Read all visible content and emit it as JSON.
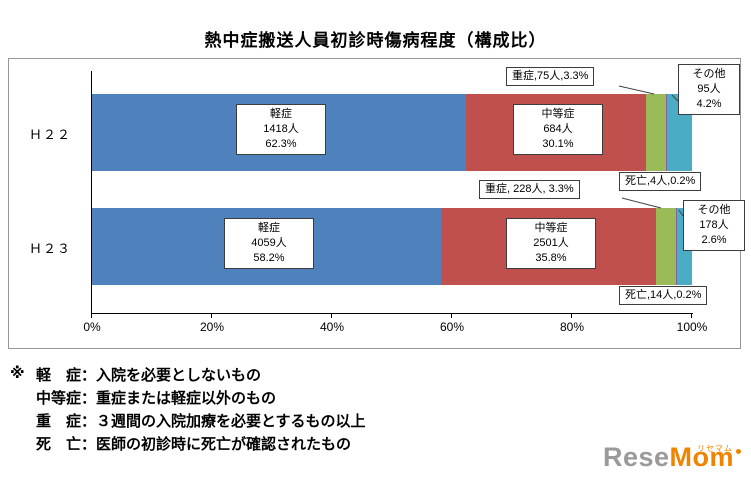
{
  "title": "熱中症搬送人員初診時傷病程度（構成比）",
  "chart_data": {
    "type": "bar",
    "orientation": "horizontal",
    "stacked": true,
    "title": "熱中症搬送人員初診時傷病程度（構成比）",
    "categories": [
      "Ｈ２２",
      "Ｈ２３"
    ],
    "series": [
      {
        "name": "軽症",
        "color": "#4F81BD",
        "percents": [
          62.3,
          58.2
        ],
        "counts": [
          1418,
          4059
        ]
      },
      {
        "name": "中等症",
        "color": "#C0504D",
        "percents": [
          30.1,
          35.8
        ],
        "counts": [
          684,
          2501
        ]
      },
      {
        "name": "重症",
        "color": "#9BBB59",
        "percents": [
          3.3,
          3.3
        ],
        "counts": [
          75,
          228
        ]
      },
      {
        "name": "死亡",
        "color": "#8064A2",
        "percents": [
          0.2,
          0.2
        ],
        "counts": [
          4,
          14
        ]
      },
      {
        "name": "その他",
        "color": "#4BACC6",
        "percents": [
          4.2,
          2.6
        ],
        "counts": [
          95,
          178
        ]
      }
    ],
    "x_ticks": [
      "0%",
      "20%",
      "40%",
      "60%",
      "80%",
      "100%"
    ],
    "xlim": [
      0,
      100
    ],
    "grid": false,
    "legend": "none"
  },
  "bar_labels": {
    "h22_mild": [
      "軽症",
      "1418人",
      "62.3%"
    ],
    "h22_moderate": [
      "中等症",
      "684人",
      "30.1%"
    ],
    "h22_other": [
      "その他",
      "95人",
      "4.2%"
    ],
    "h23_mild": [
      "軽症",
      "4059人",
      "58.2%"
    ],
    "h23_moderate": [
      "中等症",
      "2501人",
      "35.8%"
    ],
    "h23_other": [
      "その他",
      "178人",
      "2.6%"
    ]
  },
  "callouts": {
    "h22_severe": "重症,75人,3.3%",
    "h22_death": "死亡,4人,0.2%",
    "h23_severe": "重症, 228人, 3.3%",
    "h23_death": "死亡,14人,0.2%"
  },
  "notes": {
    "marker": "※",
    "lines": [
      "軽　症：入院を必要としないもの",
      "中等症：重症または軽症以外のもの",
      "重　症：３週間の入院加療を必要とするもの以上",
      "死　亡：医師の初診時に死亡が確認されたもの"
    ]
  },
  "logo": {
    "gray": "Rese",
    "orange": "Mom",
    "ruby": "リセマム"
  },
  "colors": {
    "mild": "#4F81BD",
    "moderate": "#C0504D",
    "severe": "#9BBB59",
    "death": "#8064A2",
    "other": "#4BACC6",
    "logo_gray": "#9a9a9a",
    "logo_orange": "#f08300"
  }
}
